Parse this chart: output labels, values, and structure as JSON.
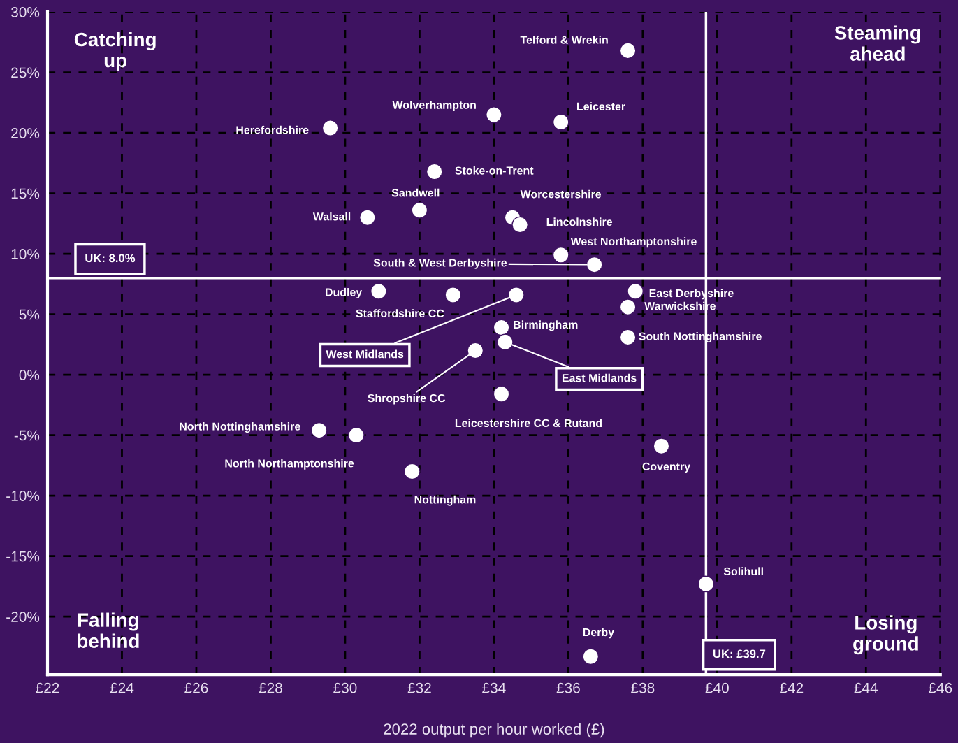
{
  "chart_data": {
    "type": "scatter",
    "xlabel": "2022 output per hour worked (£)",
    "xlim": [
      22,
      46
    ],
    "xticks": [
      {
        "value": 22,
        "label": "£22"
      },
      {
        "value": 24,
        "label": "£24"
      },
      {
        "value": 26,
        "label": "£26"
      },
      {
        "value": 28,
        "label": "£28"
      },
      {
        "value": 30,
        "label": "£30"
      },
      {
        "value": 32,
        "label": "£32"
      },
      {
        "value": 34,
        "label": "£34"
      },
      {
        "value": 36,
        "label": "£36"
      },
      {
        "value": 38,
        "label": "£38"
      },
      {
        "value": 40,
        "label": "£40"
      },
      {
        "value": 42,
        "label": "£42"
      },
      {
        "value": 44,
        "label": "£44"
      },
      {
        "value": 46,
        "label": "£46"
      }
    ],
    "ylim": [
      -24.8,
      30
    ],
    "yticks": [
      {
        "value": -20,
        "label": "-20%"
      },
      {
        "value": -15,
        "label": "-15%"
      },
      {
        "value": -10,
        "label": "-10%"
      },
      {
        "value": -5,
        "label": "-5%"
      },
      {
        "value": 0,
        "label": "0%"
      },
      {
        "value": 5,
        "label": "5%"
      },
      {
        "value": 10,
        "label": "10%"
      },
      {
        "value": 15,
        "label": "15%"
      },
      {
        "value": 20,
        "label": "20%"
      },
      {
        "value": 25,
        "label": "25%"
      },
      {
        "value": 30,
        "label": "30%"
      }
    ],
    "grid": true,
    "legend": false,
    "marker": "circle",
    "ref_lines": [
      {
        "axis": "y",
        "value": 8.0,
        "label": "UK: 8.0%",
        "color": "#ffffff"
      },
      {
        "axis": "x",
        "value": 39.7,
        "label": "UK: £39.7",
        "color": "#ffffff"
      }
    ],
    "annotations": [
      "Catching up",
      "Steaming ahead",
      "Falling behind",
      "Losing ground"
    ],
    "series": [
      {
        "name": "Telford & Wrekin",
        "color": "#ffffff",
        "x": [
          37.6
        ],
        "values": [
          26.8
        ]
      },
      {
        "name": "Wolverhampton",
        "color": "#ffffff",
        "x": [
          34.0
        ],
        "values": [
          21.5
        ]
      },
      {
        "name": "Leicester",
        "color": "#ffffff",
        "x": [
          35.8
        ],
        "values": [
          20.9
        ]
      },
      {
        "name": "Herefordshire",
        "color": "#ffffff",
        "x": [
          29.6
        ],
        "values": [
          20.4
        ]
      },
      {
        "name": "Stoke-on-Trent",
        "color": "#ffffff",
        "x": [
          32.4
        ],
        "values": [
          16.8
        ]
      },
      {
        "name": "Sandwell",
        "color": "#ffffff",
        "x": [
          32.0
        ],
        "values": [
          13.6
        ]
      },
      {
        "name": "Walsall",
        "color": "#ffffff",
        "x": [
          30.6
        ],
        "values": [
          13.0
        ]
      },
      {
        "name": "Worcestershire",
        "color": "#ffffff",
        "x": [
          34.5
        ],
        "values": [
          13.0
        ]
      },
      {
        "name": "Lincolnshire",
        "color": "#ffffff",
        "x": [
          34.7
        ],
        "values": [
          12.4
        ]
      },
      {
        "name": "West Northamptonshire",
        "color": "#ffffff",
        "x": [
          35.8
        ],
        "values": [
          9.9
        ]
      },
      {
        "name": "South & West Derbyshire",
        "color": "#ffffff",
        "x": [
          36.7
        ],
        "values": [
          9.1
        ]
      },
      {
        "name": "Dudley",
        "color": "#ffffff",
        "x": [
          30.9
        ],
        "values": [
          6.9
        ]
      },
      {
        "name": "Staffordshire CC",
        "color": "#ffffff",
        "x": [
          32.9
        ],
        "values": [
          6.6
        ]
      },
      {
        "name": "West Midlands",
        "color": "#ffffff",
        "x": [
          34.6
        ],
        "values": [
          6.6
        ]
      },
      {
        "name": "East Derbyshire",
        "color": "#ffffff",
        "x": [
          37.8
        ],
        "values": [
          6.9
        ]
      },
      {
        "name": "Warwickshire",
        "color": "#ffffff",
        "x": [
          37.6
        ],
        "values": [
          5.6
        ]
      },
      {
        "name": "Birmingham",
        "color": "#ffffff",
        "x": [
          34.2
        ],
        "values": [
          3.9
        ]
      },
      {
        "name": "South Nottinghamshire",
        "color": "#ffffff",
        "x": [
          37.6
        ],
        "values": [
          3.1
        ]
      },
      {
        "name": "East Midlands",
        "color": "#ffffff",
        "x": [
          34.3
        ],
        "values": [
          2.7
        ]
      },
      {
        "name": "Shropshire CC",
        "color": "#ffffff",
        "x": [
          33.5
        ],
        "values": [
          2.0
        ]
      },
      {
        "name": "Leicestershire CC & Rutand",
        "color": "#ffffff",
        "x": [
          34.2
        ],
        "values": [
          -1.6
        ]
      },
      {
        "name": "North Nottinghamshire",
        "color": "#ffffff",
        "x": [
          29.3
        ],
        "values": [
          -4.6
        ]
      },
      {
        "name": "North Northamptonshire",
        "color": "#ffffff",
        "x": [
          30.3
        ],
        "values": [
          -5.0
        ]
      },
      {
        "name": "Nottingham",
        "color": "#ffffff",
        "x": [
          31.8
        ],
        "values": [
          -8.0
        ]
      },
      {
        "name": "Coventry",
        "color": "#ffffff",
        "x": [
          38.5
        ],
        "values": [
          -5.9
        ]
      },
      {
        "name": "Solihull",
        "color": "#ffffff",
        "x": [
          39.7
        ],
        "values": [
          -17.3
        ]
      },
      {
        "name": "Derby",
        "color": "#ffffff",
        "x": [
          36.6
        ],
        "values": [
          -23.3
        ]
      }
    ]
  }
}
